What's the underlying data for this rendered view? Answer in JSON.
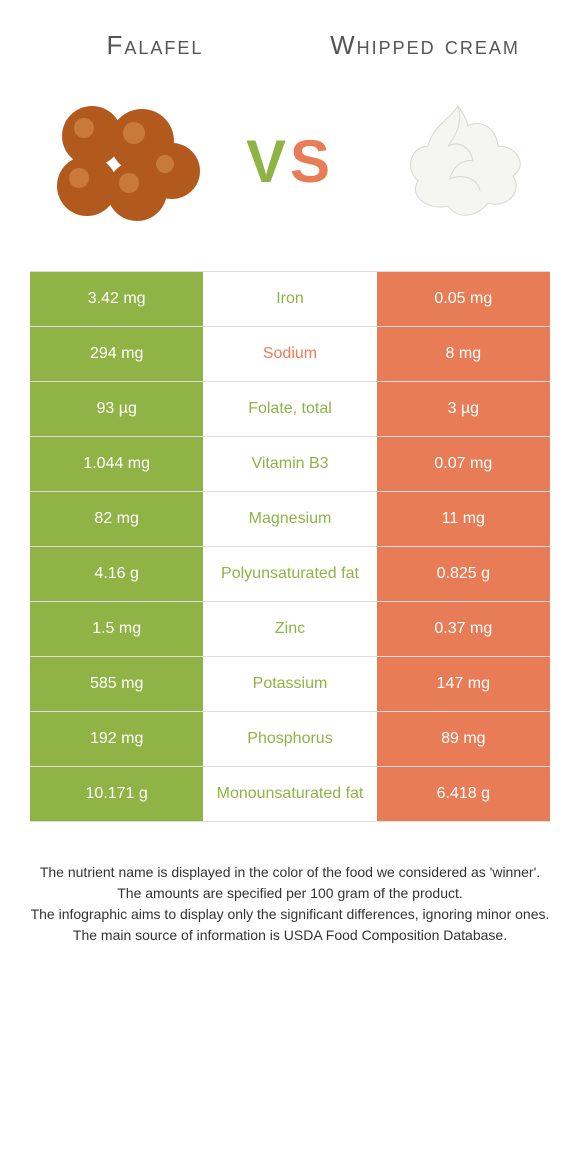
{
  "foods": {
    "left": {
      "name": "Falafel",
      "color": "#8fb445"
    },
    "right": {
      "name": "Whipped cream",
      "color": "#e87c56"
    }
  },
  "vs": {
    "v": "V",
    "s": "S"
  },
  "nutrients": [
    {
      "label": "Iron",
      "left": "3.42 mg",
      "right": "0.05 mg",
      "winner": "left"
    },
    {
      "label": "Sodium",
      "left": "294 mg",
      "right": "8 mg",
      "winner": "right"
    },
    {
      "label": "Folate, total",
      "left": "93 µg",
      "right": "3 µg",
      "winner": "left"
    },
    {
      "label": "Vitamin B3",
      "left": "1.044 mg",
      "right": "0.07 mg",
      "winner": "left"
    },
    {
      "label": "Magnesium",
      "left": "82 mg",
      "right": "11 mg",
      "winner": "left"
    },
    {
      "label": "Polyunsaturated fat",
      "left": "4.16 g",
      "right": "0.825 g",
      "winner": "left"
    },
    {
      "label": "Zinc",
      "left": "1.5 mg",
      "right": "0.37 mg",
      "winner": "left"
    },
    {
      "label": "Potassium",
      "left": "585 mg",
      "right": "147 mg",
      "winner": "left"
    },
    {
      "label": "Phosphorus",
      "left": "192 mg",
      "right": "89 mg",
      "winner": "left"
    },
    {
      "label": "Monounsaturated fat",
      "left": "10.171 g",
      "right": "6.418 g",
      "winner": "left"
    }
  ],
  "footer": [
    "The nutrient name is displayed in the color of the food we considered as 'winner'.",
    "The amounts are specified per 100 gram of the product.",
    "The infographic aims to display only the significant differences, ignoring minor ones.",
    "The main source of information is USDA Food Composition Database."
  ]
}
